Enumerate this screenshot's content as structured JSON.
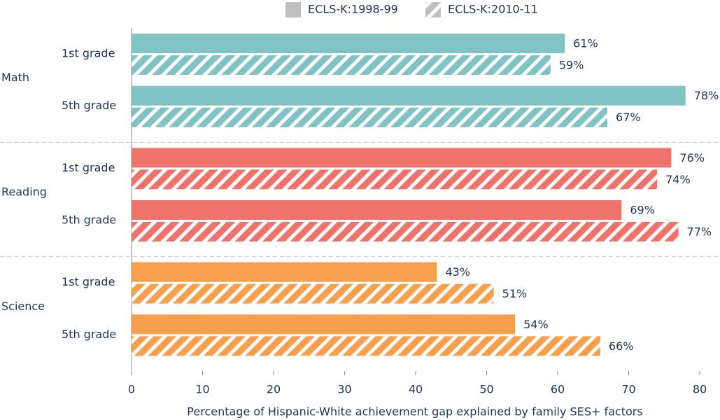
{
  "chart_data": {
    "type": "bar",
    "orientation": "horizontal",
    "groups": [
      {
        "name": "Math",
        "color": "#7fc3c4",
        "categories": [
          "1st grade",
          "5th grade"
        ]
      },
      {
        "name": "Reading",
        "color": "#f0736b",
        "categories": [
          "1st grade",
          "5th grade"
        ]
      },
      {
        "name": "Science",
        "color": "#f6a04d",
        "categories": [
          "1st grade",
          "5th grade"
        ]
      }
    ],
    "series": [
      {
        "name": "ECLS-K:1998-99",
        "color": "#bfbfbf",
        "pattern": "solid",
        "values": [
          61,
          78,
          76,
          69,
          43,
          54
        ],
        "value_labels": [
          "61%",
          "78%",
          "76%",
          "69%",
          "43%",
          "54%"
        ]
      },
      {
        "name": "ECLS-K:2010-11",
        "color": "#bfbfbf",
        "pattern": "hatch",
        "values": [
          59,
          67,
          74,
          77,
          51,
          66
        ],
        "value_labels": [
          "59%",
          "67%",
          "74%",
          "77%",
          "51%",
          "66%"
        ]
      }
    ],
    "xlim": [
      0,
      80
    ],
    "xticks": [
      0,
      10,
      20,
      30,
      40,
      50,
      60,
      70,
      80
    ],
    "xlabel": "Percentage of Hispanic-White achievement gap explained by family SES+ factors",
    "legend": "top"
  }
}
